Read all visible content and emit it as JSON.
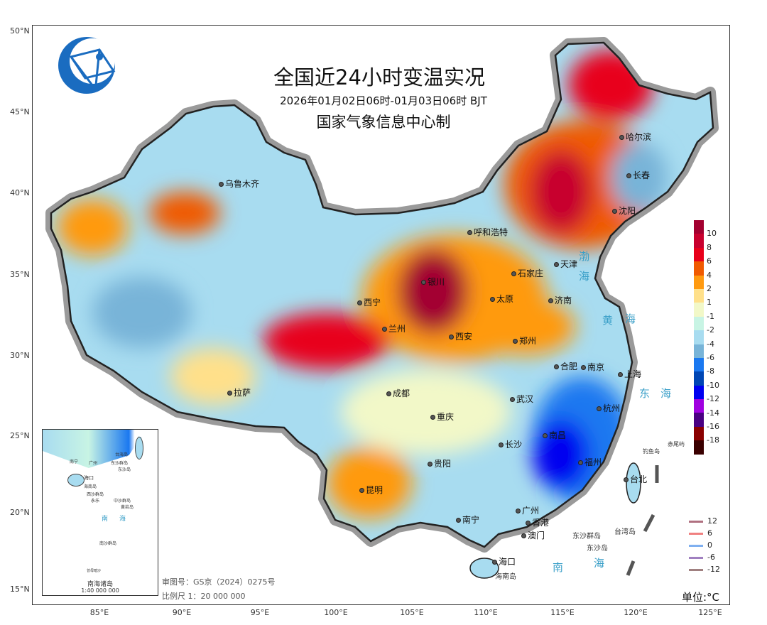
{
  "title": "全国近24小时变温实况",
  "subtitle": "2026年01月02日06时-01月03日06时 BJT",
  "producer": "国家气象信息中心制",
  "logo": "globe-network-logo",
  "lat_ticks": [
    "50°N",
    "45°N",
    "40°N",
    "35°N",
    "30°N",
    "25°N",
    "20°N",
    "15°N"
  ],
  "lon_ticks": [
    "85°E",
    "90°E",
    "95°E",
    "100°E",
    "105°E",
    "110°E",
    "115°E",
    "120°E",
    "125°E"
  ],
  "cities": [
    "乌鲁木齐",
    "哈尔滨",
    "长春",
    "沈阳",
    "呼和浩特",
    "银川",
    "石家庄",
    "天津",
    "太原",
    "济南",
    "西宁",
    "兰州",
    "西安",
    "郑州",
    "合肥",
    "南京",
    "上海",
    "拉萨",
    "成都",
    "武汉",
    "杭州",
    "重庆",
    "南昌",
    "长沙",
    "福州",
    "贵阳",
    "昆明",
    "台北",
    "广州",
    "南宁",
    "香港",
    "澳门",
    "海口"
  ],
  "places": [
    "台湾岛",
    "东沙群岛",
    "东沙岛",
    "海南岛",
    "钓鱼岛",
    "赤尾屿"
  ],
  "seas": [
    "渤",
    "海",
    "黄",
    "海",
    "东",
    "海",
    "南",
    "海"
  ],
  "legend": {
    "labels": [
      "10",
      "8",
      "6",
      "4",
      "2",
      "1",
      "-1",
      "-2",
      "-4",
      "-6",
      "-8",
      "-10",
      "-12",
      "-14",
      "-16",
      "-18"
    ],
    "colors": [
      "#a30030",
      "#c8002e",
      "#e8001a",
      "#f05a00",
      "#ff9a10",
      "#ffe08a",
      "#f2f8c8",
      "#c8f4e4",
      "#a8dcf0",
      "#78b4d8",
      "#1a78f0",
      "#0046b4",
      "#0000f0",
      "#a000e0",
      "#4a0082",
      "#8a0000",
      "#3a0000"
    ]
  },
  "line_legend": [
    {
      "label": "12",
      "color": "#b07080"
    },
    {
      "label": "6",
      "color": "#f08080"
    },
    {
      "label": "0",
      "color": "#80b0f0"
    },
    {
      "label": "-6",
      "color": "#a080c0"
    },
    {
      "label": "-12",
      "color": "#a08080"
    }
  ],
  "unit": "单位:°C",
  "inset": {
    "title": "南海诸岛",
    "scale": "1:40 000 000",
    "labels": [
      "台海岛",
      "东沙群岛",
      "东沙岛",
      "海口",
      "海南岛",
      "西沙群岛",
      "永乐",
      "中沙群岛",
      "黄岩岛",
      "南",
      "海",
      "南沙群岛",
      "曾母暗沙",
      "南宁",
      "广州",
      "台"
    ]
  },
  "review_number": "审图号：GS京（2024）0275号",
  "scale": "比例尺 1：20 000 000"
}
